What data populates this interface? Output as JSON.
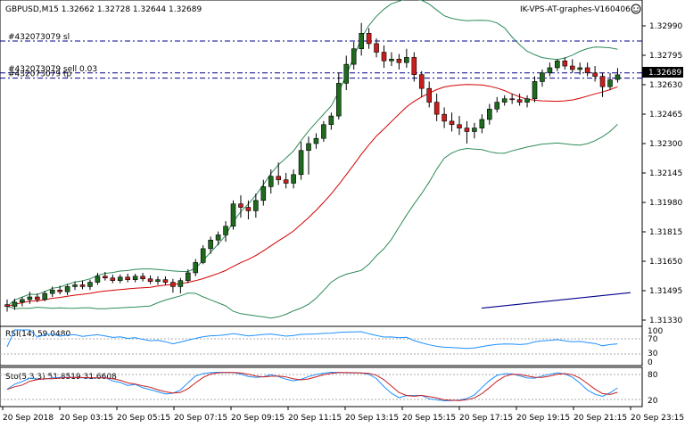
{
  "header": {
    "symbol_info": "GBPUSD,M15  1.32662 1.32728 1.32644 1.32689",
    "ea_name": "IK-VPS-AT-graphes-V160406"
  },
  "order_lines": [
    {
      "label": "#432073079 sl",
      "price": 1.32885
    },
    {
      "label": "#432073079 sell 0.03",
      "price": 1.327
    },
    {
      "label": "#432073079 tp",
      "price": 1.3267
    }
  ],
  "current_price": "1.32689",
  "colors": {
    "bull": "#1e6b1e",
    "bear": "#c81e1e",
    "bands": "#2e8b57",
    "ma": "#d40000",
    "trend": "#00008b",
    "rsi": "#1e90ff",
    "stoch_main": "#1e90ff",
    "stoch_signal": "#c81e1e",
    "order_line": "#00008b",
    "price_tag": "#000000"
  },
  "price_axis": {
    "ticks": [
      "1.32990",
      "1.32795",
      "1.32630",
      "1.32465",
      "1.32300",
      "1.32145",
      "1.31980",
      "1.31815",
      "1.31650",
      "1.31495",
      "1.31330"
    ]
  },
  "rsi_panel": {
    "label": "RSI(14) 59.0480",
    "ticks": [
      "100",
      "70",
      "30",
      "0"
    ],
    "levels": [
      70,
      30
    ]
  },
  "stoch_panel": {
    "label": "Sto(5,3,3) 51.8519 31.6608",
    "ticks": [
      "80",
      "20"
    ],
    "levels": [
      80,
      20
    ]
  },
  "time_axis": {
    "labels": [
      "20 Sep 2018",
      "20 Sep 03:15",
      "20 Sep 05:15",
      "20 Sep 07:15",
      "20 Sep 09:15",
      "20 Sep 11:15",
      "20 Sep 13:15",
      "20 Sep 15:15",
      "20 Sep 17:15",
      "20 Sep 19:15",
      "20 Sep 21:15",
      "20 Sep 23:15"
    ]
  },
  "chart_data": {
    "type": "candlestick",
    "symbol": "GBPUSD",
    "timeframe": "M15",
    "ylim": [
      1.3125,
      1.3303
    ],
    "candles": [
      [
        1.31355,
        1.31385,
        1.31315,
        1.31345
      ],
      [
        1.31345,
        1.3139,
        1.31325,
        1.3137
      ],
      [
        1.3137,
        1.314,
        1.31345,
        1.31385
      ],
      [
        1.31385,
        1.3143,
        1.3136,
        1.314
      ],
      [
        1.314,
        1.3142,
        1.3137,
        1.31385
      ],
      [
        1.31385,
        1.31435,
        1.31375,
        1.3142
      ],
      [
        1.3142,
        1.3146,
        1.314,
        1.3144
      ],
      [
        1.3144,
        1.31465,
        1.31415,
        1.3143
      ],
      [
        1.3143,
        1.31475,
        1.3141,
        1.3146
      ],
      [
        1.3146,
        1.3149,
        1.3144,
        1.3147
      ],
      [
        1.3147,
        1.31495,
        1.31445,
        1.3146
      ],
      [
        1.3146,
        1.315,
        1.3144,
        1.31485
      ],
      [
        1.31485,
        1.3154,
        1.3147,
        1.3152
      ],
      [
        1.3152,
        1.31545,
        1.31495,
        1.3151
      ],
      [
        1.3151,
        1.3153,
        1.3148,
        1.31495
      ],
      [
        1.31495,
        1.3153,
        1.3148,
        1.31515
      ],
      [
        1.31515,
        1.31535,
        1.31485,
        1.315
      ],
      [
        1.315,
        1.31535,
        1.31485,
        1.3152
      ],
      [
        1.3152,
        1.3154,
        1.3149,
        1.31505
      ],
      [
        1.31505,
        1.31525,
        1.31475,
        1.3149
      ],
      [
        1.3149,
        1.3152,
        1.3147,
        1.315
      ],
      [
        1.315,
        1.3152,
        1.3147,
        1.31485
      ],
      [
        1.31485,
        1.31505,
        1.31425,
        1.3146
      ],
      [
        1.3146,
        1.3151,
        1.3142,
        1.31495
      ],
      [
        1.31495,
        1.3156,
        1.3148,
        1.3154
      ],
      [
        1.3154,
        1.3162,
        1.3152,
        1.316
      ],
      [
        1.316,
        1.317,
        1.3159,
        1.3168
      ],
      [
        1.3168,
        1.3175,
        1.3165,
        1.3173
      ],
      [
        1.3173,
        1.3178,
        1.317,
        1.3176
      ],
      [
        1.3176,
        1.3184,
        1.3172,
        1.3181
      ],
      [
        1.3181,
        1.3196,
        1.3179,
        1.3194
      ],
      [
        1.3194,
        1.3199,
        1.3186,
        1.3192
      ],
      [
        1.3192,
        1.3196,
        1.3185,
        1.319
      ],
      [
        1.319,
        1.32,
        1.3186,
        1.3196
      ],
      [
        1.3196,
        1.3208,
        1.3193,
        1.3204
      ],
      [
        1.3204,
        1.3214,
        1.32,
        1.321
      ],
      [
        1.321,
        1.3218,
        1.3205,
        1.3208
      ],
      [
        1.3208,
        1.3212,
        1.3203,
        1.3206
      ],
      [
        1.3206,
        1.3214,
        1.3203,
        1.3211
      ],
      [
        1.3211,
        1.323,
        1.3208,
        1.3225
      ],
      [
        1.3225,
        1.3233,
        1.3211,
        1.3229
      ],
      [
        1.3229,
        1.3235,
        1.3226,
        1.3232
      ],
      [
        1.3232,
        1.3242,
        1.323,
        1.324
      ],
      [
        1.324,
        1.3247,
        1.3237,
        1.3245
      ],
      [
        1.3245,
        1.327,
        1.3243,
        1.3264
      ],
      [
        1.3264,
        1.328,
        1.326,
        1.3275
      ],
      [
        1.3275,
        1.3288,
        1.3272,
        1.3284
      ],
      [
        1.3284,
        1.3299,
        1.328,
        1.3293
      ],
      [
        1.3293,
        1.3296,
        1.3284,
        1.3287
      ],
      [
        1.3287,
        1.329,
        1.3279,
        1.3282
      ],
      [
        1.3282,
        1.3286,
        1.3273,
        1.3277
      ],
      [
        1.3277,
        1.3282,
        1.3274,
        1.3278
      ],
      [
        1.3278,
        1.3281,
        1.3272,
        1.3276
      ],
      [
        1.3276,
        1.3284,
        1.3273,
        1.3279
      ],
      [
        1.3279,
        1.3282,
        1.3265,
        1.3269
      ],
      [
        1.3269,
        1.3271,
        1.3256,
        1.3261
      ],
      [
        1.3261,
        1.3265,
        1.325,
        1.3253
      ],
      [
        1.3253,
        1.3258,
        1.3242,
        1.3246
      ],
      [
        1.3246,
        1.325,
        1.3238,
        1.3242
      ],
      [
        1.3242,
        1.3247,
        1.3236,
        1.324
      ],
      [
        1.324,
        1.3245,
        1.3234,
        1.3238
      ],
      [
        1.3238,
        1.3242,
        1.3229,
        1.3236
      ],
      [
        1.3236,
        1.3241,
        1.3232,
        1.3238
      ],
      [
        1.3238,
        1.3246,
        1.3235,
        1.3243
      ],
      [
        1.3243,
        1.3252,
        1.324,
        1.3249
      ],
      [
        1.3249,
        1.3256,
        1.3247,
        1.3253
      ],
      [
        1.3253,
        1.3257,
        1.3251,
        1.3255
      ],
      [
        1.3255,
        1.3258,
        1.3252,
        1.32545
      ],
      [
        1.32545,
        1.3258,
        1.3251,
        1.3253
      ],
      [
        1.3253,
        1.3257,
        1.325,
        1.3255
      ],
      [
        1.3255,
        1.3268,
        1.3253,
        1.3265
      ],
      [
        1.3265,
        1.3272,
        1.3262,
        1.327
      ],
      [
        1.327,
        1.3276,
        1.3268,
        1.3273
      ],
      [
        1.3273,
        1.3278,
        1.3271,
        1.3277
      ],
      [
        1.3277,
        1.3279,
        1.3272,
        1.3274
      ],
      [
        1.3274,
        1.3278,
        1.327,
        1.3272
      ],
      [
        1.3272,
        1.3276,
        1.3269,
        1.3273
      ],
      [
        1.3273,
        1.3276,
        1.3268,
        1.327
      ],
      [
        1.327,
        1.3274,
        1.3265,
        1.3268
      ],
      [
        1.3268,
        1.327,
        1.3256,
        1.3262
      ],
      [
        1.3262,
        1.327,
        1.326,
        1.3266
      ],
      [
        1.32662,
        1.32728,
        1.32644,
        1.32689
      ]
    ]
  }
}
